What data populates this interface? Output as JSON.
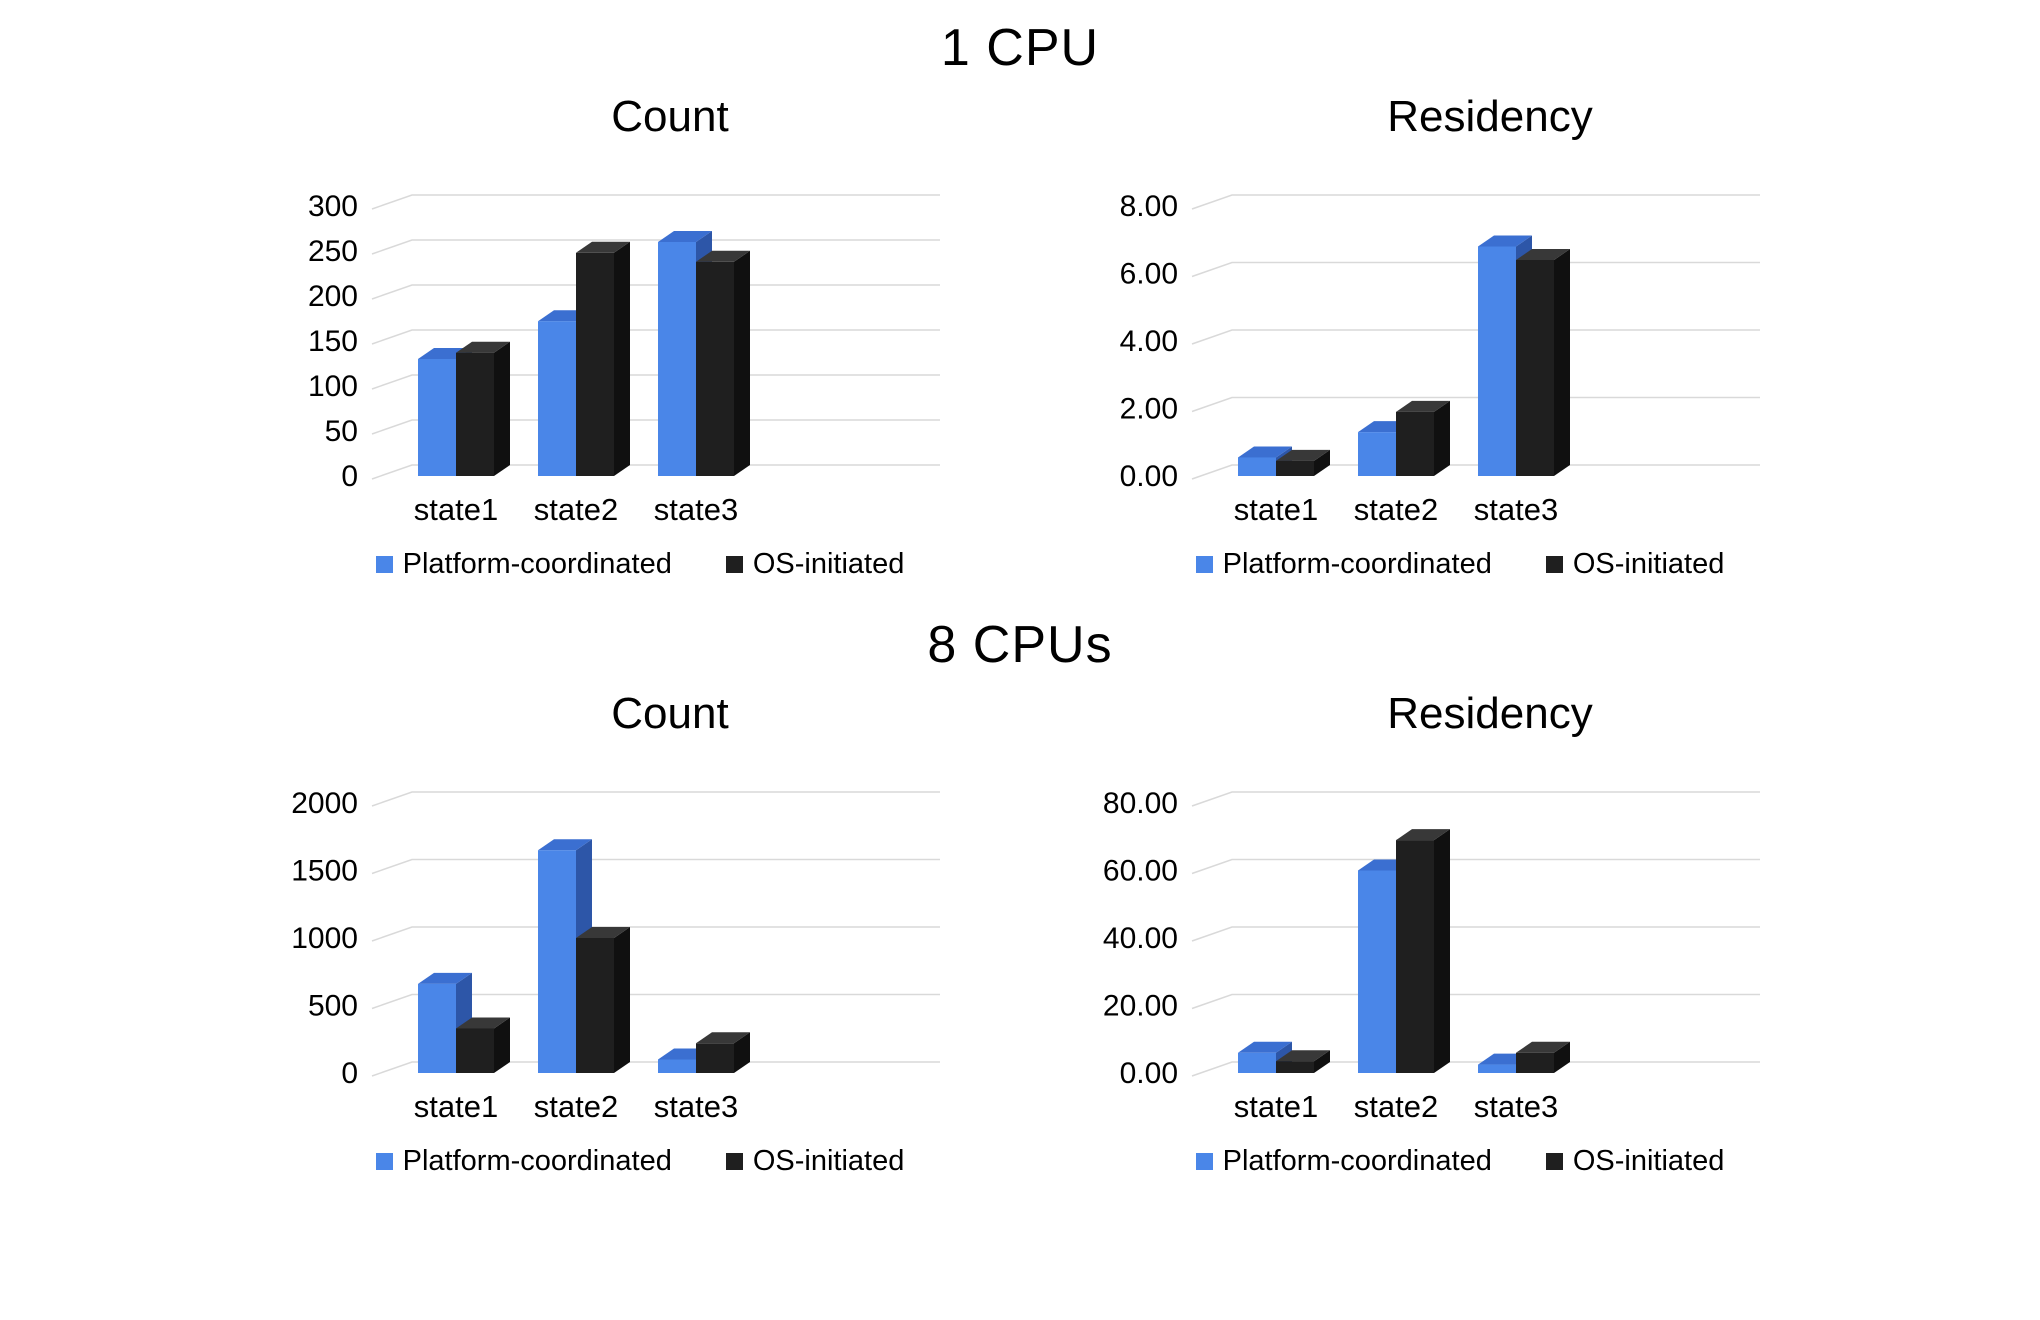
{
  "page": {
    "background": "#ffffff"
  },
  "sections": [
    {
      "title": "1 CPU"
    },
    {
      "title": "8 CPUs"
    }
  ],
  "colors": {
    "platform_blue": "#4a86e8",
    "os_black": "#1f1f1f",
    "gridline": "#d9d9d9"
  },
  "chart_data": [
    {
      "section": "1 CPU",
      "title": "Count",
      "type": "bar",
      "style": "3d",
      "grid": true,
      "legend_position": "bottom",
      "categories": [
        "state1",
        "state2",
        "state3"
      ],
      "series": [
        {
          "name": "Platform-coordinated",
          "color": "#4a86e8",
          "color_top": "#3b6fd1",
          "color_side": "#2d56a8",
          "values": [
            130,
            172,
            260
          ]
        },
        {
          "name": "OS-initiated",
          "color": "#1f1f1f",
          "color_top": "#383838",
          "color_side": "#101010",
          "values": [
            137,
            248,
            238
          ]
        }
      ],
      "ylim": [
        0,
        300
      ],
      "ytick_step": 50,
      "ytick_labels": [
        "0",
        "50",
        "100",
        "150",
        "200",
        "250",
        "300"
      ]
    },
    {
      "section": "1 CPU",
      "title": "Residency",
      "type": "bar",
      "style": "3d",
      "grid": true,
      "legend_position": "bottom",
      "categories": [
        "state1",
        "state2",
        "state3"
      ],
      "series": [
        {
          "name": "Platform-coordinated",
          "color": "#4a86e8",
          "color_top": "#3b6fd1",
          "color_side": "#2d56a8",
          "values": [
            0.55,
            1.3,
            6.8
          ]
        },
        {
          "name": "OS-initiated",
          "color": "#1f1f1f",
          "color_top": "#383838",
          "color_side": "#101010",
          "values": [
            0.45,
            1.9,
            6.4
          ]
        }
      ],
      "ylim": [
        0,
        8
      ],
      "ytick_step": 2,
      "ytick_labels": [
        "0.00",
        "2.00",
        "4.00",
        "6.00",
        "8.00"
      ]
    },
    {
      "section": "8 CPUs",
      "title": "Count",
      "type": "bar",
      "style": "3d",
      "grid": true,
      "legend_position": "bottom",
      "categories": [
        "state1",
        "state2",
        "state3"
      ],
      "series": [
        {
          "name": "Platform-coordinated",
          "color": "#4a86e8",
          "color_top": "#3b6fd1",
          "color_side": "#2d56a8",
          "values": [
            660,
            1650,
            100
          ]
        },
        {
          "name": "OS-initiated",
          "color": "#1f1f1f",
          "color_top": "#383838",
          "color_side": "#101010",
          "values": [
            330,
            1000,
            220
          ]
        }
      ],
      "ylim": [
        0,
        2000
      ],
      "ytick_step": 500,
      "ytick_labels": [
        "0",
        "500",
        "1000",
        "1500",
        "2000"
      ]
    },
    {
      "section": "8 CPUs",
      "title": "Residency",
      "type": "bar",
      "style": "3d",
      "grid": true,
      "legend_position": "bottom",
      "categories": [
        "state1",
        "state2",
        "state3"
      ],
      "series": [
        {
          "name": "Platform-coordinated",
          "color": "#4a86e8",
          "color_top": "#3b6fd1",
          "color_side": "#2d56a8",
          "values": [
            6,
            60,
            2.5
          ]
        },
        {
          "name": "OS-initiated",
          "color": "#1f1f1f",
          "color_top": "#383838",
          "color_side": "#101010",
          "values": [
            3.5,
            69,
            6
          ]
        }
      ],
      "ylim": [
        0,
        80
      ],
      "ytick_step": 20,
      "ytick_labels": [
        "0.00",
        "20.00",
        "40.00",
        "60.00",
        "80.00"
      ]
    }
  ]
}
